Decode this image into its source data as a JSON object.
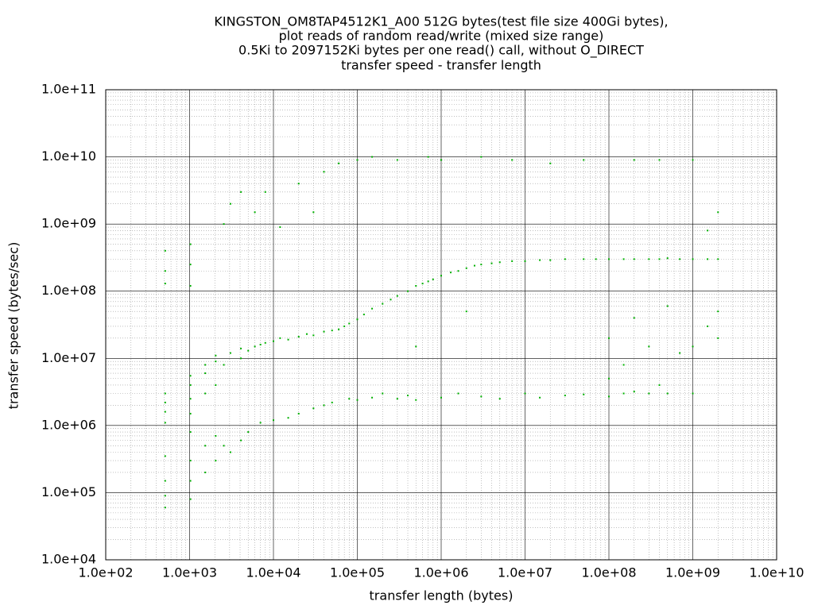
{
  "chart_data": {
    "type": "scatter",
    "title": [
      "KINGSTON_OM8TAP4512K1_A00 512G bytes(test file size 400Gi bytes),",
      "plot reads of random read/write (mixed size range)",
      "0.5Ki to 2097152Ki bytes per one read() call, without O_DIRECT",
      "transfer speed - transfer length"
    ],
    "x_label": "transfer length (bytes)",
    "y_label": "transfer speed (bytes/sec)",
    "log_x": true,
    "log_y": true,
    "grid": true,
    "minor_grid": true,
    "color": "#00b000",
    "xlim": [
      100,
      10000000000
    ],
    "ylim": [
      10000,
      100000000000
    ],
    "xticks": [
      {
        "value": 100,
        "label": "1.0e+02"
      },
      {
        "value": 1000,
        "label": "1.0e+03"
      },
      {
        "value": 10000,
        "label": "1.0e+04"
      },
      {
        "value": 100000,
        "label": "1.0e+05"
      },
      {
        "value": 1000000,
        "label": "1.0e+06"
      },
      {
        "value": 10000000,
        "label": "1.0e+07"
      },
      {
        "value": 100000000,
        "label": "1.0e+08"
      },
      {
        "value": 1000000000,
        "label": "1.0e+09"
      },
      {
        "value": 10000000000,
        "label": "1.0e+10"
      }
    ],
    "yticks": [
      {
        "value": 10000,
        "label": "1.0e+04"
      },
      {
        "value": 100000,
        "label": "1.0e+05"
      },
      {
        "value": 1000000,
        "label": "1.0e+06"
      },
      {
        "value": 10000000,
        "label": "1.0e+07"
      },
      {
        "value": 100000000,
        "label": "1.0e+08"
      },
      {
        "value": 1000000000,
        "label": "1.0e+09"
      },
      {
        "value": 10000000000,
        "label": "1.0e+10"
      },
      {
        "value": 100000000000,
        "label": "1.0e+11"
      }
    ],
    "x": [
      512,
      512,
      512,
      512,
      512,
      512,
      512,
      512,
      512,
      512,
      512,
      1024,
      1024,
      1024,
      1024,
      1024,
      1024,
      1024,
      1024,
      1024,
      1024,
      1024,
      1536,
      1536,
      1536,
      1536,
      1536,
      2048,
      2048,
      2048,
      2048,
      2048,
      2560,
      2560,
      2560,
      3072,
      3072,
      3072,
      4096,
      4096,
      4096,
      4096,
      5000,
      5000,
      6000,
      6000,
      7000,
      7000,
      8000,
      8000,
      10000,
      10000,
      12000,
      12000,
      15000,
      15000,
      20000,
      20000,
      20000,
      25000,
      30000,
      30000,
      30000,
      40000,
      40000,
      40000,
      50000,
      50000,
      60000,
      60000,
      70000,
      80000,
      80000,
      100000,
      100000,
      100000,
      120000,
      150000,
      150000,
      150000,
      200000,
      200000,
      250000,
      300000,
      300000,
      300000,
      400000,
      400000,
      500000,
      500000,
      500000,
      600000,
      700000,
      700000,
      800000,
      1000000,
      1000000,
      1000000,
      1300000,
      1600000,
      1600000,
      2000000,
      2000000,
      2500000,
      3000000,
      3000000,
      3000000,
      4000000,
      5000000,
      5000000,
      7000000,
      7000000,
      10000000,
      10000000,
      15000000,
      15000000,
      20000000,
      20000000,
      30000000,
      30000000,
      50000000,
      50000000,
      50000000,
      70000000,
      100000000,
      100000000,
      100000000,
      100000000,
      150000000,
      150000000,
      150000000,
      200000000,
      200000000,
      200000000,
      200000000,
      300000000,
      300000000,
      300000000,
      400000000,
      400000000,
      400000000,
      500000000,
      500000000,
      500000000,
      700000000,
      700000000,
      1000000000,
      1000000000,
      1000000000,
      1000000000,
      1500000000,
      1500000000,
      1500000000,
      2000000000,
      2000000000,
      2000000000,
      2000000000
    ],
    "values": [
      60000,
      90000,
      150000,
      350000,
      1100000,
      1600000,
      2200000,
      3000000,
      130000000,
      200000000,
      400000000,
      80000,
      150000,
      300000,
      800000,
      1500000,
      2500000,
      4000000,
      5500000,
      120000000,
      250000000,
      500000000,
      200000,
      500000,
      3000000,
      6000000,
      8000000,
      300000,
      700000,
      4000000,
      9000000,
      11000000,
      500000,
      8000000,
      1000000000,
      12000000,
      400000,
      2000000000,
      10000000,
      600000,
      14000000,
      3000000000,
      13000000,
      800000,
      15000000,
      1500000000,
      16000000,
      1100000,
      17000000,
      3000000000,
      18000000,
      1200000,
      20000000,
      900000000,
      19000000,
      1300000,
      21000000,
      1500000,
      4000000000,
      23000000,
      22000000,
      1800000,
      1500000000,
      25000000,
      2000000,
      6000000000,
      26000000,
      2200000,
      27000000,
      8000000000,
      30000000,
      33000000,
      2500000,
      38000000,
      2400000,
      9000000000,
      45000000,
      55000000,
      2600000,
      10000000000,
      65000000,
      3000000,
      75000000,
      85000000,
      2500000,
      9000000000,
      100000000,
      2800000,
      120000000,
      2400000,
      15000000,
      130000000,
      140000000,
      10000000000,
      150000000,
      170000000,
      2600000,
      9000000000,
      190000000,
      200000000,
      3000000,
      220000000,
      50000000,
      240000000,
      250000000,
      2700000,
      10000000000,
      260000000,
      270000000,
      2500000,
      280000000,
      9000000000,
      280000000,
      3000000,
      290000000,
      2600000,
      290000000,
      8000000000,
      300000000,
      2800000,
      300000000,
      2900000,
      9000000000,
      300000000,
      300000000,
      2700000,
      5000000,
      20000000,
      300000000,
      3000000,
      8000000,
      300000000,
      3200000,
      9000000000,
      40000000,
      300000000,
      3000000,
      15000000,
      300000000,
      4000000,
      9000000000,
      310000000,
      3000000,
      60000000,
      300000000,
      12000000,
      300000000,
      15000000,
      9000000000,
      3000000,
      300000000,
      30000000,
      800000000,
      300000000,
      20000000,
      50000000,
      1500000000
    ]
  }
}
